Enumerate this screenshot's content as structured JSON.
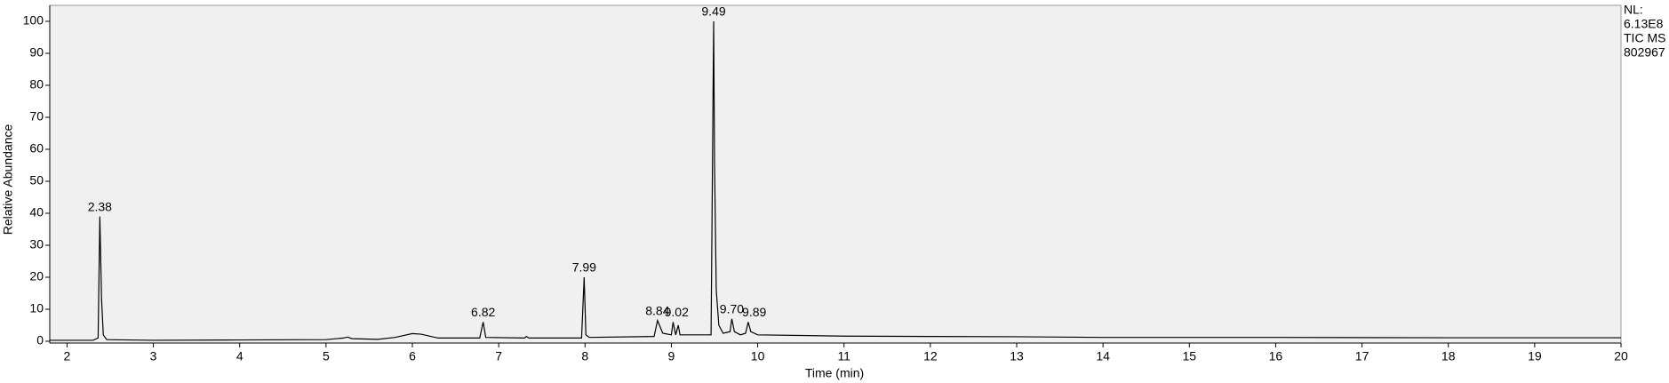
{
  "chart_data": {
    "type": "line",
    "x_label": "Time (min)",
    "y_label": "Relative Abundance",
    "info": [
      "NL:",
      "6.13E8",
      "TIC  MS",
      "802967"
    ],
    "xlim": [
      1.8,
      20
    ],
    "ylim": [
      0,
      105
    ],
    "xticks": [
      2,
      3,
      4,
      5,
      6,
      7,
      8,
      9,
      10,
      11,
      12,
      13,
      14,
      15,
      16,
      17,
      18,
      19,
      20
    ],
    "yticks": [
      0,
      10,
      20,
      30,
      40,
      50,
      60,
      70,
      80,
      90,
      100
    ],
    "series": [
      {
        "name": "TIC",
        "color": "#000000",
        "x": [
          1.8,
          2.3,
          2.36,
          2.38,
          2.4,
          2.42,
          2.46,
          3.0,
          4.0,
          5.0,
          5.2,
          5.25,
          5.3,
          5.6,
          5.8,
          6.0,
          6.1,
          6.3,
          6.78,
          6.82,
          6.85,
          7.3,
          7.32,
          7.35,
          7.96,
          7.99,
          8.01,
          8.05,
          8.8,
          8.84,
          8.9,
          9.0,
          9.02,
          9.05,
          9.08,
          9.1,
          9.46,
          9.49,
          9.5,
          9.52,
          9.55,
          9.6,
          9.68,
          9.7,
          9.73,
          9.8,
          9.86,
          9.89,
          9.92,
          10.0,
          10.5,
          11,
          12,
          13,
          14,
          16,
          18,
          20
        ],
        "values": [
          0.3,
          0.3,
          1,
          39,
          13,
          2,
          0.5,
          0.3,
          0.4,
          0.5,
          1,
          1.3,
          0.8,
          0.6,
          1.2,
          2.4,
          2.2,
          1,
          1,
          6,
          1.2,
          1,
          1.5,
          1,
          1,
          20,
          2,
          1.2,
          1.5,
          6.5,
          2.5,
          2,
          6,
          2,
          5,
          2,
          2,
          100,
          56,
          16,
          5,
          2.5,
          3,
          7,
          3,
          2,
          2.5,
          6,
          3,
          2,
          1.8,
          1.6,
          1.5,
          1.4,
          1.2,
          1.2,
          1.1,
          1.1
        ]
      }
    ],
    "annotations": [
      {
        "text": "2.38",
        "x": 2.38,
        "y": 39
      },
      {
        "text": "6.82",
        "x": 6.82,
        "y": 6
      },
      {
        "text": "7.99",
        "x": 7.99,
        "y": 20
      },
      {
        "text": "8.84",
        "x": 8.84,
        "y": 6.5
      },
      {
        "text": "9.02",
        "x": 9.06,
        "y": 6
      },
      {
        "text": "9.49",
        "x": 9.49,
        "y": 100
      },
      {
        "text": "9.70",
        "x": 9.7,
        "y": 7
      },
      {
        "text": "9.89",
        "x": 9.96,
        "y": 6
      }
    ]
  }
}
